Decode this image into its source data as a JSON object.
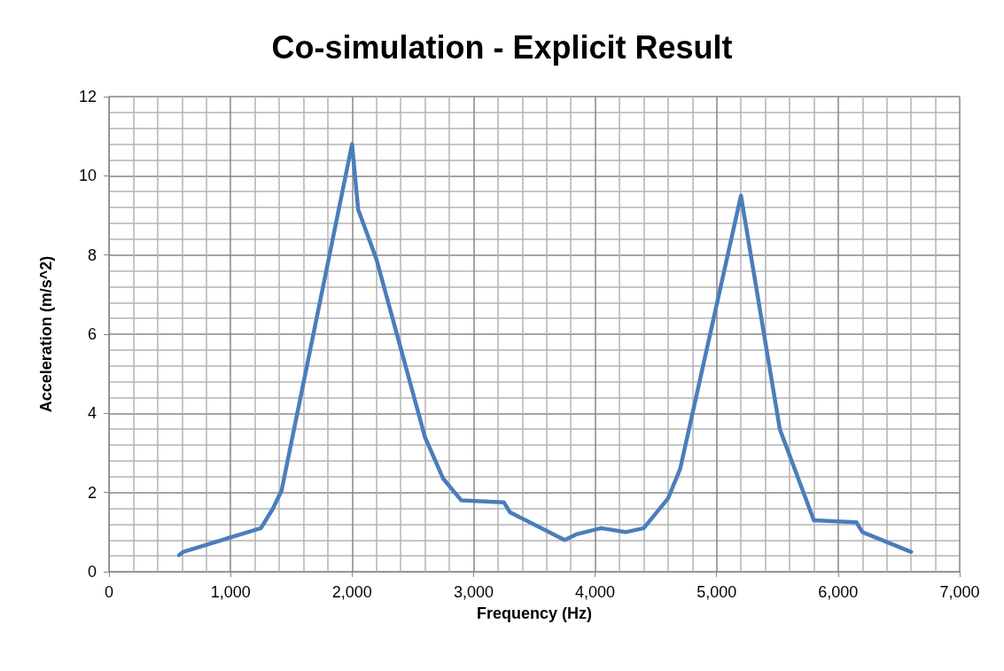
{
  "chart_data": {
    "type": "line",
    "title": "Co-simulation - Explicit Result",
    "xlabel": "Frequency (Hz)",
    "ylabel": "Acceleration (m/s^2)",
    "series": [
      {
        "color": "#4a7ebb",
        "x": [
          577,
          610,
          1250,
          1350,
          1420,
          2000,
          2050,
          2200,
          2600,
          2750,
          2900,
          3250,
          3300,
          3750,
          3850,
          4050,
          4250,
          4400,
          4600,
          4700,
          5200,
          5520,
          5800,
          6150,
          6200,
          6600
        ],
        "values": [
          0.42,
          0.5,
          1.1,
          1.6,
          2.05,
          10.8,
          9.15,
          7.9,
          3.4,
          2.35,
          1.8,
          1.75,
          1.5,
          0.8,
          0.95,
          1.1,
          1.0,
          1.1,
          1.85,
          2.6,
          9.5,
          3.6,
          1.3,
          1.25,
          1.0,
          0.5
        ]
      }
    ],
    "xlim": [
      0,
      7000
    ],
    "xticks": [
      0,
      {
        "value": 1000,
        "label": "1,000"
      },
      {
        "value": 2000,
        "label": "2,000"
      },
      {
        "value": 3000,
        "label": "3,000"
      },
      {
        "value": 4000,
        "label": "4,000"
      },
      {
        "value": 5000,
        "label": "5,000"
      },
      {
        "value": 6000,
        "label": "6,000"
      },
      {
        "value": 7000,
        "label": "7,000"
      }
    ],
    "ylim": [
      0,
      12
    ],
    "yticks": [
      0,
      2,
      4,
      6,
      8,
      10,
      12
    ],
    "grid": true,
    "marker": "none",
    "line_style": "solid"
  }
}
